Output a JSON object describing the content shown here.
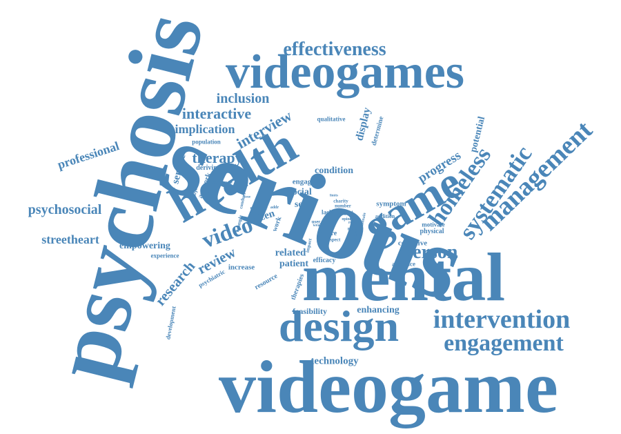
{
  "word_cloud": {
    "color": "#4a86b8",
    "words": [
      {
        "text": "serious",
        "orientation": "diagonal"
      },
      {
        "text": "psychosis",
        "orientation": "vertical"
      },
      {
        "text": "videogame",
        "orientation": "horizontal"
      },
      {
        "text": "mental",
        "orientation": "horizontal"
      },
      {
        "text": "videogames",
        "orientation": "horizontal"
      },
      {
        "text": "health",
        "orientation": "diagonal"
      },
      {
        "text": "design",
        "orientation": "horizontal"
      },
      {
        "text": "game",
        "orientation": "diagonal"
      },
      {
        "text": "intervention",
        "orientation": "horizontal"
      },
      {
        "text": "engagement",
        "orientation": "horizontal"
      },
      {
        "text": "effectiveness",
        "orientation": "horizontal"
      },
      {
        "text": "management",
        "orientation": "diagonal"
      },
      {
        "text": "systematic",
        "orientation": "diagonal"
      },
      {
        "text": "homeless",
        "orientation": "diagonal"
      },
      {
        "text": "video",
        "orientation": "diagonal"
      },
      {
        "text": "person",
        "orientation": "horizontal"
      },
      {
        "text": "interactive",
        "orientation": "horizontal"
      },
      {
        "text": "interview",
        "orientation": "diagonal"
      },
      {
        "text": "inclusion",
        "orientation": "horizontal"
      },
      {
        "text": "implication",
        "orientation": "horizontal"
      },
      {
        "text": "therapy",
        "orientation": "horizontal"
      },
      {
        "text": "psychosocial",
        "orientation": "horizontal"
      },
      {
        "text": "streetheart",
        "orientation": "horizontal"
      },
      {
        "text": "professional",
        "orientation": "diagonal"
      },
      {
        "text": "research",
        "orientation": "diagonal"
      },
      {
        "text": "review",
        "orientation": "diagonal"
      },
      {
        "text": "technology",
        "orientation": "horizontal"
      },
      {
        "text": "progress",
        "orientation": "diagonal"
      },
      {
        "text": "potential",
        "orientation": "vertical"
      },
      {
        "text": "display",
        "orientation": "vertical"
      },
      {
        "text": "condition",
        "orientation": "horizontal"
      },
      {
        "text": "service",
        "orientation": "vertical"
      },
      {
        "text": "empowering",
        "orientation": "horizontal"
      },
      {
        "text": "related",
        "orientation": "horizontal"
      },
      {
        "text": "patient",
        "orientation": "horizontal"
      },
      {
        "text": "citizen",
        "orientation": "diagonal"
      },
      {
        "text": "enhancing",
        "orientation": "horizontal"
      },
      {
        "text": "feasibility",
        "orientation": "horizontal"
      },
      {
        "text": "social",
        "orientation": "horizontal"
      },
      {
        "text": "self",
        "orientation": "horizontal"
      },
      {
        "text": "engage",
        "orientation": "horizontal"
      },
      {
        "text": "artwork",
        "orientation": "vertical"
      },
      {
        "text": "deriving",
        "orientation": "horizontal"
      },
      {
        "text": "symptom",
        "orientation": "horizontal"
      },
      {
        "text": "cognitive",
        "orientation": "horizontal"
      },
      {
        "text": "physical",
        "orientation": "horizontal"
      },
      {
        "text": "motivate",
        "orientation": "horizontal"
      },
      {
        "text": "audience",
        "orientation": "horizontal"
      },
      {
        "text": "efficacy",
        "orientation": "horizontal"
      },
      {
        "text": "future",
        "orientation": "horizontal"
      },
      {
        "text": "increase",
        "orientation": "horizontal"
      },
      {
        "text": "experience",
        "orientation": "horizontal"
      },
      {
        "text": "development",
        "orientation": "vertical"
      },
      {
        "text": "psychiatric",
        "orientation": "diagonal"
      },
      {
        "text": "resource",
        "orientation": "diagonal"
      },
      {
        "text": "therapies",
        "orientation": "vertical"
      },
      {
        "text": "population",
        "orientation": "horizontal"
      },
      {
        "text": "qualitative",
        "orientation": "horizontal"
      },
      {
        "text": "determine",
        "orientation": "vertical"
      },
      {
        "text": "evidence",
        "orientation": "horizontal"
      },
      {
        "text": "objective",
        "orientation": "vertical"
      },
      {
        "text": "work",
        "orientation": "vertical"
      },
      {
        "text": "lack",
        "orientation": "horizontal"
      },
      {
        "text": "addition",
        "orientation": "horizontal"
      },
      {
        "text": "charity",
        "orientation": "horizontal"
      },
      {
        "text": "number",
        "orientation": "horizontal"
      },
      {
        "text": "digital",
        "orientation": "horizontal"
      },
      {
        "text": "opinion",
        "orientation": "horizontal"
      },
      {
        "text": "report",
        "orientation": "horizontal"
      },
      {
        "text": "aspect",
        "orientation": "horizontal"
      },
      {
        "text": "effective",
        "orientation": "horizontal"
      },
      {
        "text": "domain",
        "orientation": "vertical"
      },
      {
        "text": "example",
        "orientation": "vertical"
      },
      {
        "text": "conduct",
        "orientation": "vertical"
      },
      {
        "text": "user",
        "orientation": "horizontal"
      },
      {
        "text": "impact",
        "orientation": "vertical"
      },
      {
        "text": "method",
        "orientation": "vertical"
      },
      {
        "text": "wealth",
        "orientation": "horizontal"
      },
      {
        "text": "addr",
        "orientation": "horizontal"
      },
      {
        "text": "limits",
        "orientation": "horizontal"
      },
      {
        "text": "paper",
        "orientation": "horizontal"
      },
      {
        "text": "issue",
        "orientation": "horizontal"
      }
    ]
  }
}
